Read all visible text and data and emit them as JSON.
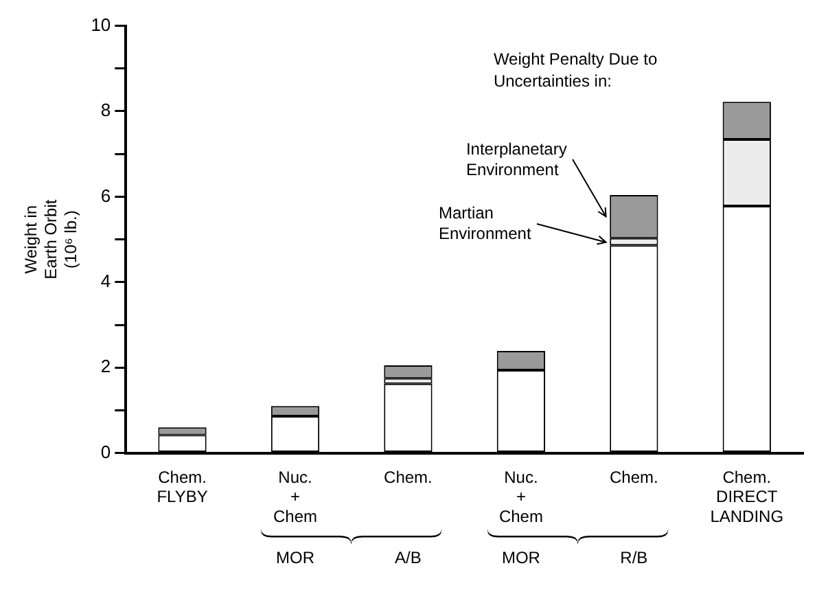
{
  "chart_data": {
    "type": "bar",
    "stacked": true,
    "categories": [
      "Chem.\nFLYBY",
      "Nuc.\n+\nChem",
      "Chem.",
      "Nuc.\n+\nChem",
      "Chem.",
      "Chem.\nDIRECT\nLANDING"
    ],
    "series": [
      {
        "color": "#ffffff",
        "values": [
          0.42,
          0.86,
          1.62,
          1.94,
          4.86,
          5.78
        ]
      },
      {
        "name": "Martian\nEnvironment",
        "color": "#ececec",
        "values": [
          null,
          null,
          0.13,
          null,
          0.17,
          1.56
        ]
      },
      {
        "name": "Interplanetary\nEnvironment",
        "color": "#9a9a9a",
        "values": [
          0.18,
          0.24,
          0.3,
          0.45,
          1.01,
          0.88
        ]
      }
    ],
    "legend_title": "Weight Penalty Due to\nUncertainties in:",
    "ylabel": "Weight in\nEarth Orbit\n(10⁶ lb.)",
    "ylim": [
      0,
      10
    ],
    "yticks": [
      0,
      {
        "value": 1,
        "label": null
      },
      2,
      {
        "value": 3,
        "label": null
      },
      4,
      {
        "value": 5,
        "label": null
      },
      6,
      {
        "value": 7,
        "label": null
      },
      8,
      {
        "value": 9,
        "label": null
      },
      10
    ],
    "annotations": [
      "MOR",
      "A/B",
      "MOR",
      "R/B"
    ],
    "grid": false
  }
}
